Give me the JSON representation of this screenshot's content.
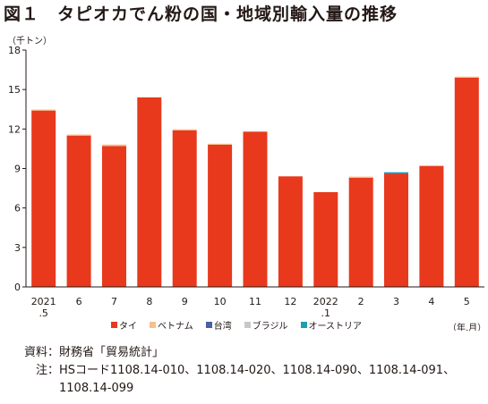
{
  "figure": {
    "title": "図１　タピオカでん粉の国・地域別輸入量の推移"
  },
  "chart_data": {
    "type": "bar",
    "stacked": true,
    "unit_label": "（千トン）",
    "x_unit_label": "（年.月）",
    "categories": [
      "2021.5",
      "6",
      "7",
      "8",
      "9",
      "10",
      "11",
      "12",
      "2022.1",
      "2",
      "3",
      "4",
      "5"
    ],
    "category_labels": [
      [
        "2021",
        ".5"
      ],
      [
        "6"
      ],
      [
        "7"
      ],
      [
        "8"
      ],
      [
        "9"
      ],
      [
        "10"
      ],
      [
        "11"
      ],
      [
        "12"
      ],
      [
        "2022",
        ".1"
      ],
      [
        "2"
      ],
      [
        "3"
      ],
      [
        "4"
      ],
      [
        "5"
      ]
    ],
    "series": [
      {
        "name": "タイ",
        "color": "#e8391d",
        "values": [
          13.4,
          11.5,
          10.7,
          14.4,
          11.9,
          10.8,
          11.8,
          8.4,
          7.2,
          8.3,
          8.6,
          9.2,
          15.9
        ]
      },
      {
        "name": "ベトナム",
        "color": "#f5c18c",
        "values": [
          0.05,
          0.05,
          0.12,
          0,
          0.05,
          0.08,
          0,
          0,
          0,
          0.03,
          0,
          0,
          0.05
        ]
      },
      {
        "name": "台湾",
        "color": "#4a5fa8",
        "values": [
          0,
          0,
          0,
          0,
          0,
          0,
          0,
          0,
          0,
          0,
          0.03,
          0,
          0
        ]
      },
      {
        "name": "ブラジル",
        "color": "#c8c8c8",
        "values": [
          0,
          0,
          0,
          0,
          0,
          0,
          0,
          0,
          0,
          0,
          0,
          0,
          0
        ]
      },
      {
        "name": "オーストリア",
        "color": "#1e9fb0",
        "values": [
          0,
          0,
          0,
          0,
          0,
          0,
          0,
          0,
          0,
          0,
          0.04,
          0,
          0
        ]
      }
    ],
    "ylim": [
      0,
      18
    ],
    "yticks": [
      0,
      3,
      6,
      9,
      12,
      15,
      18
    ],
    "grid": false,
    "legend_position": "bottom"
  },
  "footnotes": {
    "source_label": "資料：",
    "source_text": "財務省「貿易統計」",
    "note_label": "注：",
    "note_line1": "HSコード1108.14-010、1108.14-020、1108.14-090、1108.14-091、",
    "note_line2": "1108.14-099"
  }
}
